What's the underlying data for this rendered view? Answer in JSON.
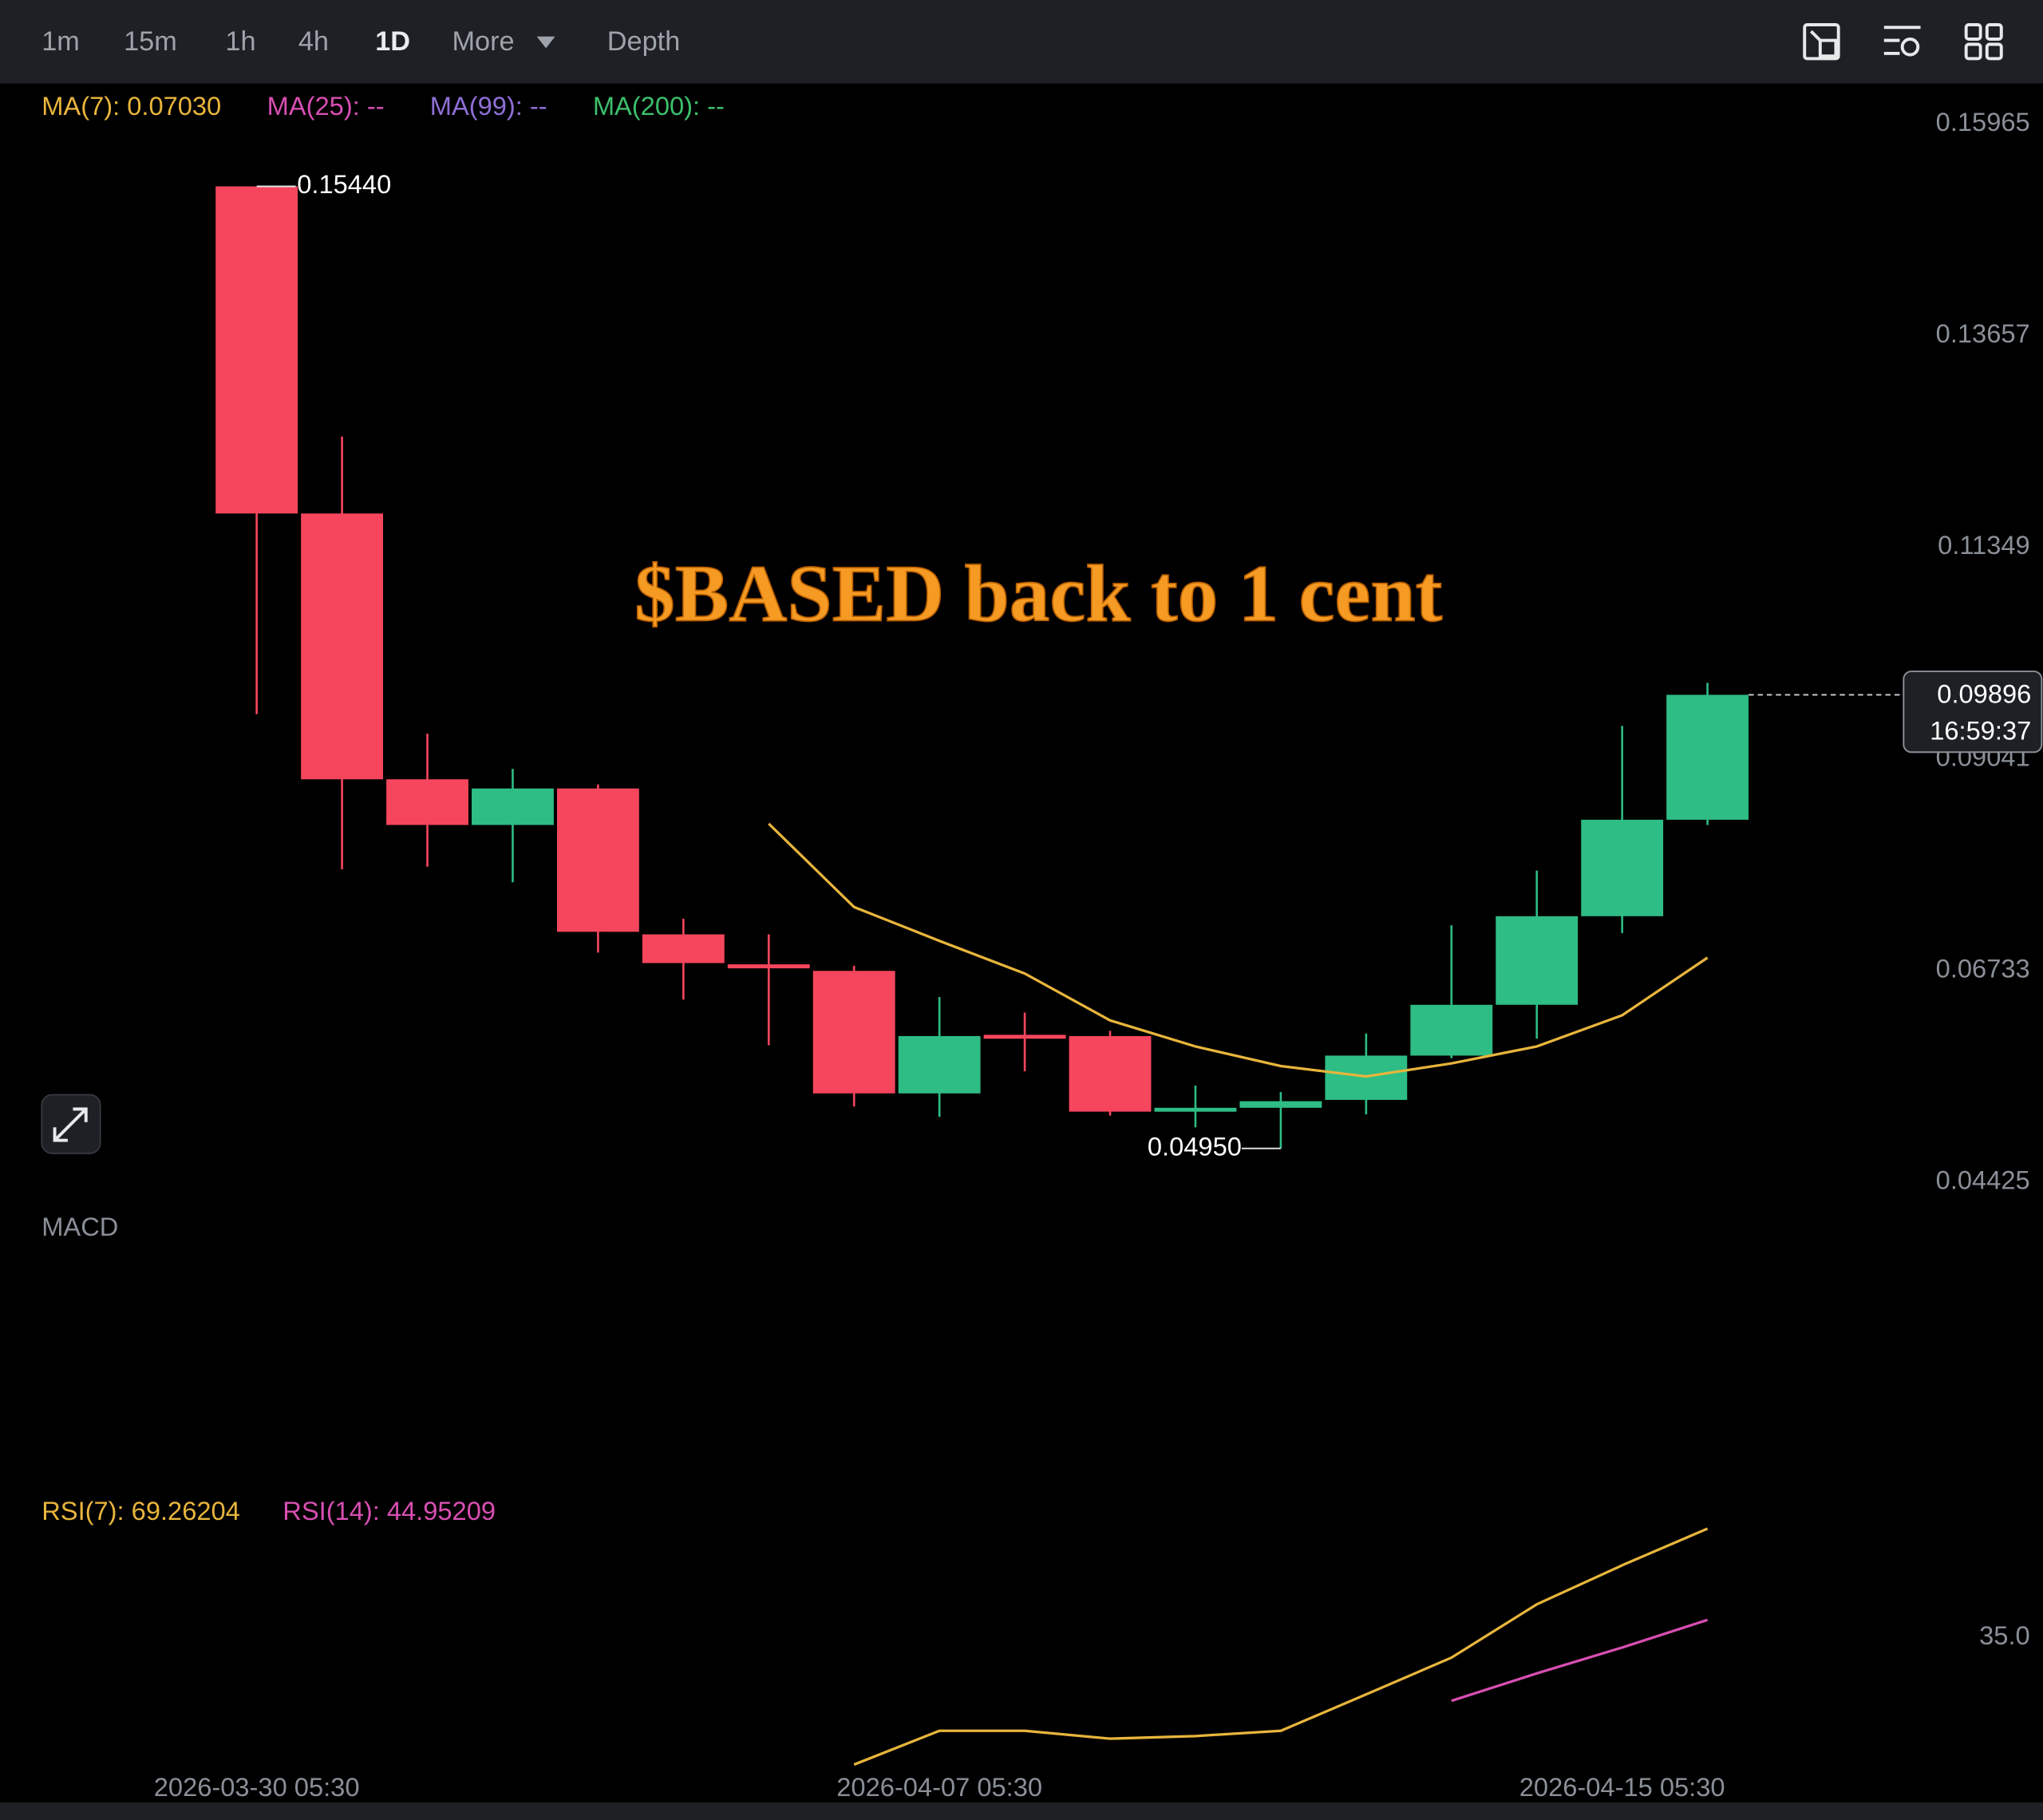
{
  "toolbar": {
    "intervals": [
      "1m",
      "15m",
      "1h",
      "4h",
      "1D"
    ],
    "active": "1D",
    "more": "More",
    "depth": "Depth"
  },
  "overlay_title": "$BASED back to 1 cent",
  "macd": {
    "title": "MACD"
  },
  "chart_data": [
    {
      "type": "candlestick",
      "categories": [
        "2026-03-30 05:30",
        null,
        null,
        null,
        null,
        null,
        null,
        null,
        "2026-04-07 05:30",
        null,
        null,
        null,
        null,
        null,
        null,
        null,
        "2026-04-15 05:30",
        null
      ],
      "open": [
        0.1544,
        0.11873,
        0.08975,
        0.08477,
        0.08875,
        0.07284,
        0.06957,
        0.06886,
        0.0555,
        0.06189,
        0.06175,
        0.05365,
        0.05393,
        0.05479,
        0.05962,
        0.06516,
        0.07482,
        0.08534
      ],
      "high": [
        0.1544,
        0.12712,
        0.09472,
        0.09088,
        0.08918,
        0.07454,
        0.07284,
        0.06942,
        0.06601,
        0.06431,
        0.06232,
        0.05635,
        0.05564,
        0.06203,
        0.07383,
        0.0798,
        0.09557,
        0.10026
      ],
      "low": [
        0.09685,
        0.07994,
        0.08022,
        0.07852,
        0.07085,
        0.06573,
        0.06076,
        0.05408,
        0.05294,
        0.05791,
        0.05308,
        0.0518,
        0.0495,
        0.05322,
        0.05933,
        0.06147,
        0.07298,
        0.08477
      ],
      "close": [
        0.11873,
        0.08975,
        0.08477,
        0.08875,
        0.07312,
        0.06971,
        0.06914,
        0.0555,
        0.06175,
        0.06161,
        0.05351,
        0.05393,
        0.05465,
        0.05962,
        0.06516,
        0.07482,
        0.08534,
        0.09896
      ],
      "up_color": "#2ebd85",
      "down_color": "#f6465d",
      "series": [
        {
          "legend_label": "MA(7): 0.07030",
          "color": "#e8b53c",
          "values": [
            null,
            null,
            null,
            null,
            null,
            null,
            0.08491,
            0.07582,
            0.07213,
            0.06857,
            0.06346,
            0.06062,
            0.05848,
            0.05735,
            0.05877,
            0.06062,
            0.06402,
            0.0703
          ]
        },
        {
          "legend_label": "MA(25): --",
          "color": "#d84fb2"
        },
        {
          "legend_label": "MA(99): --",
          "color": "#8f6fd6"
        },
        {
          "legend_label": "MA(200): --",
          "color": "#3dbf6c"
        }
      ],
      "extremes": [
        {
          "value": 0.1544,
          "label": "0.15440"
        },
        {
          "value": 0.0495,
          "label": "0.04950"
        }
      ],
      "current": {
        "value": 0.09896,
        "label": "0.09896",
        "countdown": "16:59:37"
      },
      "ylim": [
        0.044,
        0.1655
      ],
      "yticks": [
        0.15965,
        0.13657,
        0.11349,
        0.09041,
        0.06733,
        0.04425
      ]
    },
    {
      "type": "line",
      "series": [
        {
          "legend_label": "RSI(7): 69.26204",
          "color": "#e8b53c",
          "values": [
            null,
            null,
            null,
            null,
            null,
            null,
            null,
            6.4,
            15.4,
            15.4,
            13.3,
            14.0,
            15.4,
            25.1,
            34.9,
            49.1,
            59.5,
            69.26
          ]
        },
        {
          "legend_label": "RSI(14): 44.95209",
          "color": "#d84fb2",
          "values": [
            null,
            null,
            null,
            null,
            null,
            null,
            null,
            null,
            null,
            null,
            null,
            null,
            null,
            null,
            23.4,
            30.7,
            37.6,
            44.95
          ]
        }
      ],
      "ylim": [
        -2.5,
        80.5
      ],
      "yticks": [
        {
          "value": 35,
          "label": "35.0"
        }
      ]
    }
  ]
}
